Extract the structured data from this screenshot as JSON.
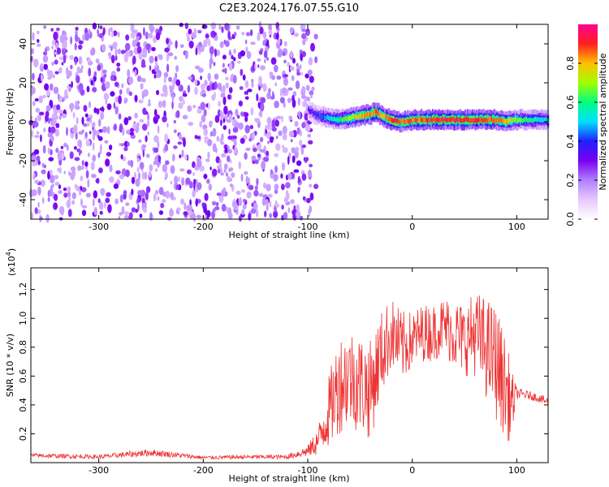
{
  "title": "C2E3.2024.176.07.55.G10",
  "chart_data": [
    {
      "type": "heatmap",
      "xlabel": "Height of straight line (km)",
      "ylabel": "Frequency (Hz)",
      "xlim": [
        -365,
        130
      ],
      "ylim": [
        -50,
        50
      ],
      "xticks": [
        "-300",
        "-200",
        "-100",
        "0",
        "100"
      ],
      "xtick_values": [
        -300,
        -200,
        -100,
        0,
        100
      ],
      "yticks": [
        "-40",
        "-20",
        "0",
        "20",
        "40"
      ],
      "ytick_values": [
        -40,
        -20,
        0,
        20,
        40
      ],
      "colorbar": {
        "label": "Normalized spectral amplitude",
        "range": [
          0,
          1
        ],
        "ticks": [
          "0.0",
          "0.2",
          "0.4",
          "0.6",
          "0.8"
        ],
        "tick_values": [
          0.0,
          0.2,
          0.4,
          0.6,
          0.8
        ],
        "colormap": [
          "#ffffff",
          "#e8c8ff",
          "#b080ff",
          "#7a00f0",
          "#2020ff",
          "#00e0ff",
          "#00ff80",
          "#a0ff00",
          "#ffc000",
          "#ff2020",
          "#ff0090"
        ]
      },
      "noise_region_x": [
        -365,
        -92
      ],
      "noise_amplitude": [
        0.05,
        0.2
      ],
      "signal_ridge": {
        "x": [
          -100,
          -90,
          -80,
          -70,
          -60,
          -50,
          -40,
          -35,
          -30,
          -20,
          -15,
          -10,
          0,
          20,
          40,
          60,
          80,
          90,
          95,
          100,
          130
        ],
        "y": [
          6,
          3,
          2,
          1,
          2,
          3,
          4,
          5,
          3,
          1,
          0,
          0,
          1,
          1,
          1,
          1,
          1,
          0,
          1,
          1,
          1
        ],
        "amplitude": [
          0.3,
          0.4,
          0.5,
          0.6,
          0.7,
          0.8,
          0.85,
          0.85,
          0.8,
          0.9,
          0.9,
          0.85,
          0.85,
          0.9,
          0.9,
          0.9,
          0.85,
          0.8,
          0.7,
          0.65,
          0.5
        ]
      }
    },
    {
      "type": "line",
      "xlabel": "Height of straight line (km)",
      "ylabel": "SNR (10 * v/v)",
      "y_scale_label": "(x10",
      "y_scale_exponent": "4",
      "y_scale_close": ")",
      "xlim": [
        -365,
        130
      ],
      "ylim": [
        0,
        13500
      ],
      "xticks": [
        "-300",
        "-200",
        "-100",
        "0",
        "100"
      ],
      "xtick_values": [
        -300,
        -200,
        -100,
        0,
        100
      ],
      "yticks": [
        "0.2",
        "0.4",
        "0.6",
        "0.8",
        "1.0",
        "1.2"
      ],
      "ytick_values": [
        2000,
        4000,
        6000,
        8000,
        10000,
        12000
      ],
      "color": "#ee3333",
      "series": [
        {
          "x": [
            -365,
            -300,
            -250,
            -200,
            -150,
            -120,
            -100,
            -90,
            -80,
            -70,
            -60,
            -50,
            -40,
            -30,
            -20,
            -10,
            0,
            10,
            20,
            30,
            40,
            50,
            60,
            70,
            80,
            90,
            95,
            100,
            110,
            120,
            130
          ],
          "y": [
            500,
            400,
            700,
            350,
            400,
            400,
            800,
            1500,
            3500,
            5500,
            6000,
            5500,
            5000,
            7500,
            9000,
            8000,
            8500,
            9000,
            9000,
            9500,
            9000,
            8500,
            9000,
            8000,
            7000,
            5000,
            4000,
            4800,
            4700,
            4500,
            4200
          ],
          "spread": [
            150,
            150,
            250,
            120,
            150,
            150,
            400,
            1000,
            2500,
            3500,
            3500,
            3500,
            3500,
            3000,
            2500,
            2500,
            2000,
            2000,
            2000,
            2000,
            2500,
            2500,
            3000,
            3500,
            4000,
            3500,
            2500,
            400,
            300,
            300,
            300
          ]
        }
      ]
    }
  ]
}
